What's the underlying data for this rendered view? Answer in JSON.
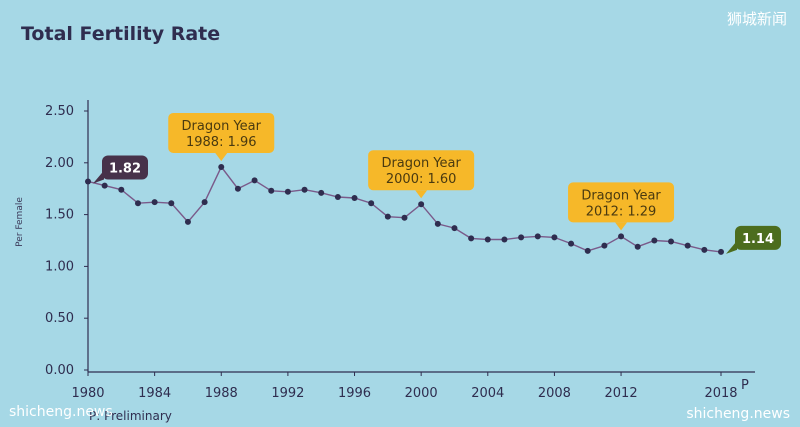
{
  "watermarks": {
    "top_right": "狮城新闻",
    "bottom_left": "shicheng.news",
    "bottom_right": "shicheng.news"
  },
  "footnote": "P: Preliminary",
  "colors": {
    "background": "#a6d8e6",
    "line": "#7a5a8a",
    "point": "#2f2d4f",
    "callout": "#f6b829",
    "badge_start": "#47324a",
    "badge_end": "#4c6d1e"
  },
  "chart_data": {
    "type": "line",
    "title": "Total Fertility Rate",
    "ylabel": "Per Female",
    "xlabel": "",
    "ylim": [
      0,
      2.5
    ],
    "xlim": [
      1980,
      2019
    ],
    "grid": false,
    "x_ticks": [
      "1980",
      "1984",
      "1988",
      "1992",
      "1996",
      "2000",
      "2004",
      "2008",
      "2012",
      "2018"
    ],
    "x_tick_suffix": {
      "2018": "P"
    },
    "y_ticks": [
      "0.00",
      "0.50",
      "1.00",
      "1.50",
      "2.00",
      "2.50"
    ],
    "x": [
      1980,
      1981,
      1982,
      1983,
      1984,
      1985,
      1986,
      1987,
      1988,
      1989,
      1990,
      1991,
      1992,
      1993,
      1994,
      1995,
      1996,
      1997,
      1998,
      1999,
      2000,
      2001,
      2002,
      2003,
      2004,
      2005,
      2006,
      2007,
      2008,
      2009,
      2010,
      2011,
      2012,
      2013,
      2014,
      2015,
      2016,
      2017,
      2018
    ],
    "values": [
      1.82,
      1.78,
      1.74,
      1.61,
      1.62,
      1.61,
      1.43,
      1.62,
      1.96,
      1.75,
      1.83,
      1.73,
      1.72,
      1.74,
      1.71,
      1.67,
      1.66,
      1.61,
      1.48,
      1.47,
      1.6,
      1.41,
      1.37,
      1.27,
      1.26,
      1.26,
      1.28,
      1.29,
      1.28,
      1.22,
      1.15,
      1.2,
      1.29,
      1.19,
      1.25,
      1.24,
      1.2,
      1.16,
      1.14
    ],
    "annotations": [
      {
        "x": 1988,
        "y": 1.96,
        "line1": "Dragon Year",
        "line2": "1988: 1.96"
      },
      {
        "x": 2000,
        "y": 1.6,
        "line1": "Dragon Year",
        "line2": "2000: 1.60"
      },
      {
        "x": 2012,
        "y": 1.29,
        "line1": "Dragon Year",
        "line2": "2012: 1.29"
      }
    ],
    "badges": [
      {
        "x": 1980,
        "y": 1.82,
        "text": "1.82",
        "side": "right",
        "color": "#47324a"
      },
      {
        "x": 2018,
        "y": 1.14,
        "text": "1.14",
        "side": "right",
        "color": "#4c6d1e"
      }
    ]
  }
}
